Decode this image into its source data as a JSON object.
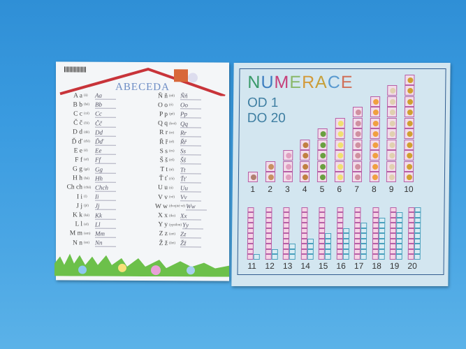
{
  "abeceda": {
    "title": "ABECEDA",
    "left_rows": [
      [
        "A a",
        "(á)",
        "Aa"
      ],
      [
        "B b",
        "(bé)",
        "Bb"
      ],
      [
        "C c",
        "(cé)",
        "Cc"
      ],
      [
        "Č č",
        "(čé)",
        "Čč"
      ],
      [
        "D d",
        "(dé)",
        "Dd"
      ],
      [
        "Ď ď",
        "(ďé)",
        "Ďď"
      ],
      [
        "E e",
        "(é)",
        "Ee"
      ],
      [
        "F f",
        "(ef)",
        "Ff"
      ],
      [
        "G g",
        "(gé)",
        "Gg"
      ],
      [
        "H h",
        "(há)",
        "Hh"
      ],
      [
        "Ch ch",
        "(chá)",
        "Chch"
      ],
      [
        "I i",
        "(í)",
        "Ii"
      ],
      [
        "J j",
        "(jé)",
        "Jj"
      ],
      [
        "K k",
        "(ká)",
        "Kk"
      ],
      [
        "L l",
        "(el)",
        "Ll"
      ],
      [
        "M m",
        "(em)",
        "Mm"
      ],
      [
        "N n",
        "(en)",
        "Nn"
      ]
    ],
    "right_rows": [
      [
        "Ň ň",
        "(eň)",
        "Ňň"
      ],
      [
        "O o",
        "(ó)",
        "Oo"
      ],
      [
        "P p",
        "(pé)",
        "Pp"
      ],
      [
        "Q q",
        "(kvé)",
        "Qq"
      ],
      [
        "R r",
        "(er)",
        "Rr"
      ],
      [
        "Ř ř",
        "(eř)",
        "Řř"
      ],
      [
        "S s",
        "(es)",
        "Ss"
      ],
      [
        "Š š",
        "(eš)",
        "Šš"
      ],
      [
        "T t",
        "(té)",
        "Tt"
      ],
      [
        "Ť ť",
        "(ťé)",
        "Ťť"
      ],
      [
        "U u",
        "(ú)",
        "Uu"
      ],
      [
        "V v",
        "(vé)",
        "Vv"
      ],
      [
        "W w",
        "(dvojité vé)",
        "Ww"
      ],
      [
        "X x",
        "(iks)",
        "Xx"
      ],
      [
        "Y y",
        "(ypsilon)",
        "Yy"
      ],
      [
        "Z z",
        "(zet)",
        "Zz"
      ],
      [
        "Ž ž",
        "(žet)",
        "Žž"
      ]
    ]
  },
  "numerace": {
    "title_letters": [
      [
        "N",
        "#3a9a6a"
      ],
      [
        "U",
        "#3f7fc0"
      ],
      [
        "M",
        "#c6407a"
      ],
      [
        "E",
        "#8ab86a"
      ],
      [
        "R",
        "#d39a3a"
      ],
      [
        "A",
        "#c6a03a"
      ],
      [
        "C",
        "#5a9ad0"
      ],
      [
        "E",
        "#d0705a"
      ]
    ],
    "line1": "OD 1",
    "line2": "DO 20",
    "top_numbers": [
      "1",
      "2",
      "3",
      "4",
      "5",
      "6",
      "7",
      "8",
      "9",
      "10"
    ],
    "top_item_colors": [
      "#b08070",
      "#c89060",
      "#e0a0c0",
      "#c08040",
      "#6aa040",
      "#f0e070",
      "#d090a0",
      "#f0a040",
      "#e0d0b0",
      "#d0a030"
    ],
    "bottom_numbers": [
      "11",
      "12",
      "13",
      "14",
      "15",
      "16",
      "17",
      "18",
      "19",
      "20"
    ]
  }
}
